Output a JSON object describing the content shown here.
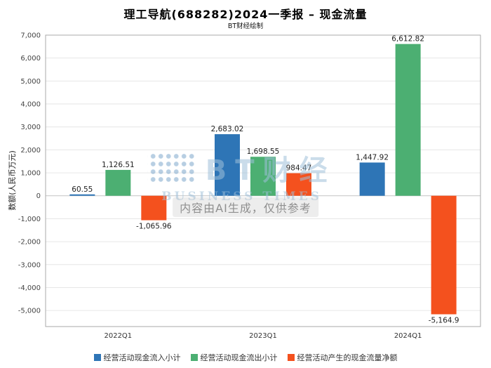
{
  "title": "理工导航(688282)2024一季报 – 现金流量",
  "subtitle": "BT财经绘制",
  "watermark": {
    "brand": "BT财经",
    "brand_sub": "BUSINESS TIMES",
    "ai_notice": "内容由AI生成，仅供参考"
  },
  "chart_data": {
    "type": "bar",
    "title": "理工导航(688282)2024一季报 – 现金流量",
    "subtitle": "BT财经绘制",
    "categories": [
      "2022Q1",
      "2023Q1",
      "2024Q1"
    ],
    "series": [
      {
        "name": "经营活动现金流入小计",
        "color": "#2e75b6",
        "values": [
          60.55,
          2683.02,
          1447.92
        ],
        "labels": [
          "60.55",
          "2,683.02",
          "1,447.92"
        ]
      },
      {
        "name": "经营活动现金流出小计",
        "color": "#4caf72",
        "values": [
          1126.51,
          1698.55,
          6612.82
        ],
        "labels": [
          "1,126.51",
          "1,698.55",
          "6,612.82"
        ]
      },
      {
        "name": "经营活动产生的现金流量净额",
        "color": "#f4511e",
        "values": [
          -1065.96,
          984.47,
          -5164.9
        ],
        "labels": [
          "-1,065.96",
          "984.47",
          "-5,164.9"
        ]
      }
    ],
    "xlabel": "",
    "ylabel": "数额(人民币万元)",
    "ylim": [
      -5700,
      7000
    ],
    "yticks": [
      7000,
      6000,
      5000,
      4000,
      3000,
      2000,
      1000,
      0,
      -1000,
      -2000,
      -3000,
      -4000,
      -5000
    ],
    "ytick_labels": [
      "7,000",
      "6,000",
      "5,000",
      "4,000",
      "3,000",
      "2,000",
      "1,000",
      "0",
      "-1,000",
      "-2,000",
      "-3,000",
      "-4,000",
      "-5,000"
    ],
    "grid": true,
    "legend_position": "bottom"
  }
}
